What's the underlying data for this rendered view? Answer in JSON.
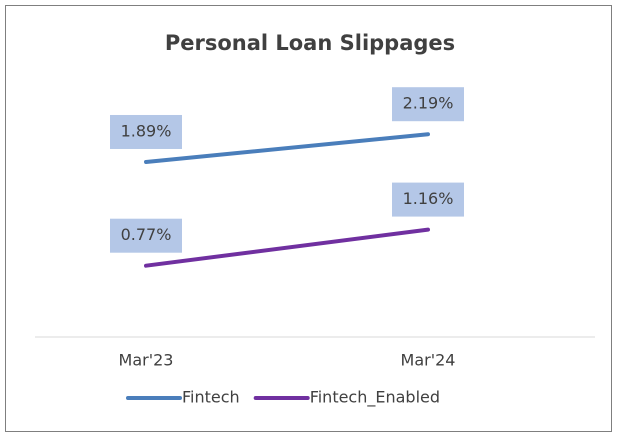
{
  "chart_data": {
    "type": "line",
    "title": "Personal Loan Slippages",
    "categories": [
      "Mar'23",
      "Mar'24"
    ],
    "series": [
      {
        "name": "Fintech",
        "color": "#4a7ebb",
        "values": [
          1.89,
          2.19
        ],
        "value_labels": [
          "1.89%",
          "2.19%"
        ]
      },
      {
        "name": "Fintech_Enabled",
        "color": "#7030a0",
        "values": [
          0.77,
          1.16
        ],
        "value_labels": [
          "0.77%",
          "1.16%"
        ]
      }
    ],
    "ylim": [
      0,
      2.5
    ],
    "legend": "bottom",
    "label_color": "#b4c7e7"
  }
}
